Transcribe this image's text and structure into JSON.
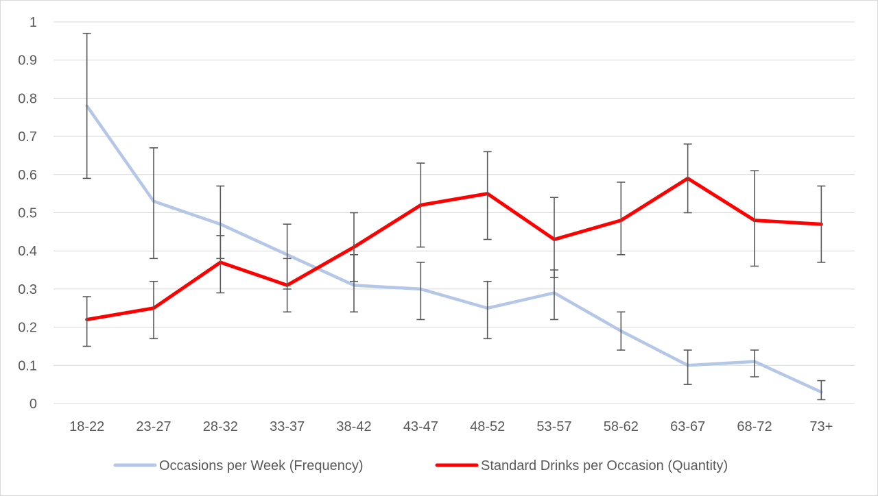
{
  "chart_data": {
    "type": "line",
    "title": "",
    "xlabel": "",
    "ylabel": "",
    "categories": [
      "18-22",
      "23-27",
      "28-32",
      "33-37",
      "38-42",
      "43-47",
      "48-52",
      "53-57",
      "58-62",
      "63-67",
      "68-72",
      "73+"
    ],
    "ylim": [
      0,
      1
    ],
    "yticks": [
      "0",
      "0.1",
      "0.2",
      "0.3",
      "0.4",
      "0.5",
      "0.6",
      "0.7",
      "0.8",
      "0.9",
      "1"
    ],
    "grid": true,
    "legend_position": "bottom",
    "series": [
      {
        "name": "Occasions per Week (Frequency)",
        "color": "#b4c7e7",
        "values": [
          0.78,
          0.53,
          0.47,
          0.39,
          0.31,
          0.3,
          0.25,
          0.29,
          0.19,
          0.1,
          0.11,
          0.03
        ],
        "error_low": [
          0.59,
          0.38,
          0.38,
          0.3,
          0.24,
          0.22,
          0.17,
          0.22,
          0.14,
          0.05,
          0.07,
          0.01
        ],
        "error_high": [
          0.97,
          0.67,
          0.57,
          0.47,
          0.39,
          0.37,
          0.32,
          0.35,
          0.24,
          0.14,
          0.14,
          0.06
        ]
      },
      {
        "name": "Standard Drinks per Occasion (Quantity)",
        "color": "#ff0000",
        "values": [
          0.22,
          0.25,
          0.37,
          0.31,
          0.41,
          0.52,
          0.55,
          0.43,
          0.48,
          0.59,
          0.48,
          0.47
        ],
        "error_low": [
          0.15,
          0.17,
          0.29,
          0.24,
          0.32,
          0.41,
          0.43,
          0.33,
          0.39,
          0.5,
          0.36,
          0.37
        ],
        "error_high": [
          0.28,
          0.32,
          0.44,
          0.38,
          0.5,
          0.63,
          0.66,
          0.54,
          0.58,
          0.68,
          0.61,
          0.57
        ]
      }
    ]
  }
}
